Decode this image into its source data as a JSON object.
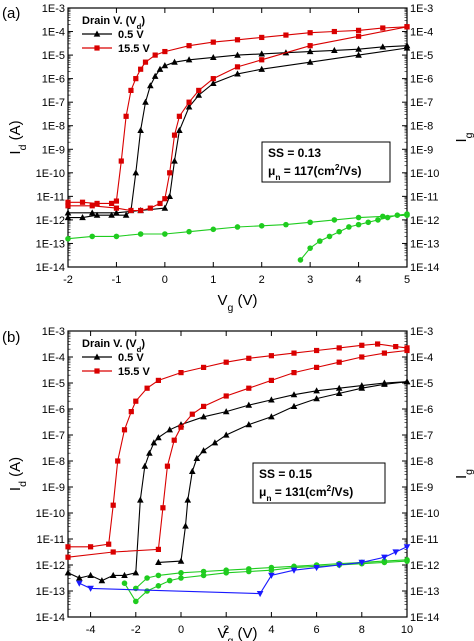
{
  "chart_data": [
    {
      "type": "line",
      "panel_label": "(a)",
      "xlabel_main": "V",
      "xlabel_sub": "g",
      "xlabel_unit": " (V)",
      "ylabel_left_main": "I",
      "ylabel_left_sub": "d",
      "ylabel_left_unit": " (A)",
      "ylabel_right_main": "I",
      "ylabel_right_sub": "g",
      "xlim": [
        -2,
        5
      ],
      "ylim_exp": [
        -14,
        -3
      ],
      "y_scale": "log",
      "x_ticks": [
        -2,
        -1,
        0,
        1,
        2,
        3,
        4,
        5
      ],
      "x_tick_labels": [
        "-2",
        "-1",
        "0",
        "1",
        "2",
        "3",
        "4",
        "5"
      ],
      "y_tick_labels": [
        "1E-3",
        "1E-4",
        "1E-5",
        "1E-6",
        "1E-7",
        "1E-8",
        "1E-9",
        "1E-10",
        "1E-11",
        "1E-12",
        "1E-13",
        "1E-14"
      ],
      "legend": {
        "title_main": "Drain V. (V",
        "title_sub": "d",
        "title_end": ")",
        "entries": [
          "0.5 V",
          "15.5 V"
        ],
        "placement": "top-left"
      },
      "annotation": {
        "line1": "SS = 0.13",
        "line2_mu": "μ",
        "line2_sub": "n",
        "line2_eq": " = 117(cm",
        "line2_sup": "2",
        "line2_end": "/Vs)"
      },
      "series": [
        {
          "name": "0.5 V",
          "color": "#000000",
          "marker": "triangle",
          "x": [
            -2,
            -1.7,
            -1.4,
            -1.1,
            -0.8,
            -0.7,
            -0.6,
            -0.5,
            -0.4,
            -0.3,
            -0.2,
            -0.1,
            0,
            0.2,
            0.5,
            1,
            1.5,
            2,
            2.5,
            3,
            3.5,
            4,
            4.5,
            5
          ],
          "y_exp": [
            -11.9,
            -11.9,
            -11.8,
            -11.8,
            -11.8,
            -11.6,
            -10,
            -8.2,
            -7,
            -6.3,
            -5.9,
            -5.6,
            -5.45,
            -5.3,
            -5.2,
            -5.1,
            -5.0,
            -4.95,
            -4.9,
            -4.85,
            -4.8,
            -4.75,
            -4.65,
            -4.6
          ]
        },
        {
          "name": "0.5 V (reverse)",
          "color": "#000000",
          "marker": "triangle",
          "x": [
            -2,
            -1.5,
            -1,
            -0.5,
            0,
            0.1,
            0.2,
            0.3,
            0.5,
            0.7,
            1,
            1.5,
            2,
            3,
            4,
            5
          ],
          "y_exp": [
            -11.7,
            -11.7,
            -11.7,
            -11.6,
            -11.5,
            -11,
            -9.5,
            -8.2,
            -7.2,
            -6.7,
            -6.2,
            -5.8,
            -5.6,
            -5.3,
            -5,
            -4.7
          ]
        },
        {
          "name": "15.5 V",
          "color": "#d90000",
          "marker": "square",
          "x": [
            -2,
            -1.7,
            -1.4,
            -1.1,
            -1,
            -0.9,
            -0.8,
            -0.7,
            -0.6,
            -0.5,
            -0.4,
            -0.2,
            0,
            0.5,
            1,
            1.5,
            2,
            2.5,
            3,
            3.5,
            4,
            4.5,
            5
          ],
          "y_exp": [
            -11.25,
            -11.25,
            -11.3,
            -11.3,
            -11.2,
            -9.5,
            -7.6,
            -6.5,
            -6,
            -5.6,
            -5.3,
            -5,
            -4.85,
            -4.6,
            -4.45,
            -4.35,
            -4.25,
            -4.15,
            -4.05,
            -4,
            -3.95,
            -3.85,
            -3.8
          ]
        },
        {
          "name": "15.5 V (reverse)",
          "color": "#d90000",
          "marker": "square",
          "x": [
            -2,
            -1.5,
            -1,
            -0.7,
            -0.5,
            -0.3,
            -0.1,
            0,
            0.1,
            0.2,
            0.3,
            0.5,
            0.7,
            1,
            1.5,
            2,
            3,
            4,
            5
          ],
          "y_exp": [
            -11.4,
            -11.4,
            -11.5,
            -11.6,
            -11.6,
            -11.5,
            -11.3,
            -11.1,
            -10,
            -8.4,
            -7.6,
            -7,
            -6.5,
            -6,
            -5.5,
            -5.2,
            -4.6,
            -4.2,
            -3.8
          ]
        },
        {
          "name": "I_g 0.5 V",
          "color": "#1fcc1f",
          "marker": "circle",
          "x": [
            -2,
            -1.5,
            -1,
            -0.5,
            0,
            0.5,
            1,
            1.5,
            2,
            2.5,
            3,
            3.5,
            4,
            4.5,
            5
          ],
          "y_exp": [
            -12.8,
            -12.7,
            -12.7,
            -12.6,
            -12.6,
            -12.5,
            -12.4,
            -12.3,
            -12.25,
            -12.2,
            -12.1,
            -12,
            -11.9,
            -11.85,
            -11.8
          ]
        },
        {
          "name": "I_g 15.5 V",
          "color": "#1fcc1f",
          "marker": "circle",
          "x": [
            2.8,
            3,
            3.2,
            3.4,
            3.6,
            3.8,
            4,
            4.2,
            4.4,
            4.6,
            4.8,
            5
          ],
          "y_exp": [
            -13.7,
            -13.2,
            -12.9,
            -12.7,
            -12.5,
            -12.3,
            -12.2,
            -12.1,
            -12,
            -11.9,
            -11.8,
            -11.75
          ]
        }
      ]
    },
    {
      "type": "line",
      "panel_label": "(b)",
      "xlabel_main": "V",
      "xlabel_sub": "g",
      "xlabel_unit": " (V)",
      "ylabel_left_main": "I",
      "ylabel_left_sub": "d",
      "ylabel_left_unit": " (A)",
      "ylabel_right_main": "I",
      "ylabel_right_sub": "g",
      "xlim": [
        -5,
        10
      ],
      "ylim_exp": [
        -14,
        -3
      ],
      "y_scale": "log",
      "x_ticks": [
        -4,
        -2,
        0,
        2,
        4,
        6,
        8,
        10
      ],
      "x_tick_labels": [
        "-4",
        "-2",
        "0",
        "2",
        "4",
        "6",
        "8",
        "10"
      ],
      "y_tick_labels": [
        "1E-3",
        "1E-4",
        "1E-5",
        "1E-6",
        "1E-7",
        "1E-8",
        "1E-9",
        "1E-10",
        "1E-11",
        "1E-12",
        "1E-13",
        "1E-14"
      ],
      "legend": {
        "title_main": "Drain V. (V",
        "title_sub": "d",
        "title_end": ")",
        "entries": [
          "0.5 V",
          "15.5 V"
        ],
        "placement": "top-left"
      },
      "annotation": {
        "line1": "SS = 0.15",
        "line2_mu": "μ",
        "line2_sub": "n",
        "line2_eq": " = 131(cm",
        "line2_sup": "2",
        "line2_end": "/Vs)"
      },
      "series": [
        {
          "name": "0.5 V",
          "color": "#000000",
          "marker": "triangle",
          "x": [
            -5,
            -4.5,
            -4,
            -3.5,
            -3,
            -2.5,
            -2,
            -1.8,
            -1.6,
            -1.4,
            -1.2,
            -1,
            -0.5,
            0,
            1,
            2,
            3,
            4,
            5,
            6,
            7,
            8,
            9,
            10
          ],
          "y_exp": [
            -12.3,
            -12.5,
            -12.4,
            -12.6,
            -12.4,
            -12.4,
            -12.3,
            -9.5,
            -8.2,
            -7.7,
            -7.3,
            -7.1,
            -6.8,
            -6.6,
            -6.3,
            -6.1,
            -5.85,
            -5.65,
            -5.45,
            -5.3,
            -5.2,
            -5.1,
            -5,
            -4.95
          ]
        },
        {
          "name": "0.5 V (reverse)",
          "color": "#000000",
          "marker": "triangle",
          "x": [
            -1,
            0,
            0.2,
            0.3,
            0.5,
            0.7,
            1,
            1.5,
            2,
            3,
            4,
            5,
            6,
            7,
            8,
            9,
            10
          ],
          "y_exp": [
            -11.9,
            -11.85,
            -10.5,
            -9.5,
            -8.4,
            -7.9,
            -7.6,
            -7.3,
            -7,
            -6.6,
            -6.3,
            -5.9,
            -5.6,
            -5.4,
            -5.2,
            -5.05,
            -4.95
          ]
        },
        {
          "name": "15.5 V",
          "color": "#d90000",
          "marker": "square",
          "x": [
            -5,
            -4,
            -3.2,
            -3,
            -2.8,
            -2.5,
            -2.2,
            -2,
            -1.5,
            -1,
            0,
            1,
            2,
            3,
            4,
            5,
            6,
            7,
            8,
            8.7,
            9.5,
            10
          ],
          "y_exp": [
            -11.3,
            -11.3,
            -11.2,
            -9.7,
            -8,
            -6.8,
            -6.1,
            -5.7,
            -5.2,
            -4.9,
            -4.6,
            -4.4,
            -4.2,
            -4.05,
            -3.95,
            -3.85,
            -3.75,
            -3.65,
            -3.55,
            -3.5,
            -3.6,
            -3.65
          ]
        },
        {
          "name": "15.5 V (reverse)",
          "color": "#d90000",
          "marker": "square",
          "x": [
            -5,
            -3,
            -1,
            -0.8,
            -0.6,
            -0.3,
            0,
            0.5,
            1,
            2,
            3,
            4,
            5,
            6,
            7,
            8,
            9,
            10
          ],
          "y_exp": [
            -11.7,
            -11.5,
            -11.4,
            -9.8,
            -8.2,
            -7.2,
            -6.7,
            -6.2,
            -5.9,
            -5.5,
            -5.2,
            -4.9,
            -4.6,
            -4.4,
            -4.2,
            -4,
            -3.85,
            -3.75
          ]
        },
        {
          "name": "I_g 0.5 V",
          "color": "#1fcc1f",
          "marker": "circle",
          "x": [
            -2,
            -1.5,
            -1,
            0,
            1,
            2,
            3,
            4,
            5,
            6,
            7,
            8,
            9,
            10
          ],
          "y_exp": [
            -12.9,
            -12.5,
            -12.4,
            -12.3,
            -12.25,
            -12.2,
            -12.15,
            -12.1,
            -12.05,
            -12,
            -11.95,
            -11.9,
            -11.85,
            -11.8
          ]
        },
        {
          "name": "I_g 15.5 V",
          "color": "#1fcc1f",
          "marker": "circle",
          "x": [
            -2.5,
            -2,
            -1.5,
            -1,
            -0.5,
            0,
            1,
            2,
            3,
            4,
            5,
            6,
            7,
            8,
            9,
            10
          ],
          "y_exp": [
            -12.7,
            -13.4,
            -13,
            -12.8,
            -12.6,
            -12.5,
            -12.4,
            -12.3,
            -12.25,
            -12.2,
            -12.1,
            -12.05,
            -12,
            -11.95,
            -11.9,
            -11.85
          ]
        },
        {
          "name": "I_g 15.5 V (blue)",
          "color": "#1a1aff",
          "marker": "tri-down",
          "x": [
            -4.5,
            -4,
            3.5,
            4,
            5,
            6,
            7,
            8,
            9,
            9.5,
            10
          ],
          "y_exp": [
            -12.7,
            -12.9,
            -13.1,
            -12.4,
            -12.2,
            -12.1,
            -12,
            -11.9,
            -11.7,
            -11.5,
            -11.3
          ]
        }
      ]
    }
  ]
}
